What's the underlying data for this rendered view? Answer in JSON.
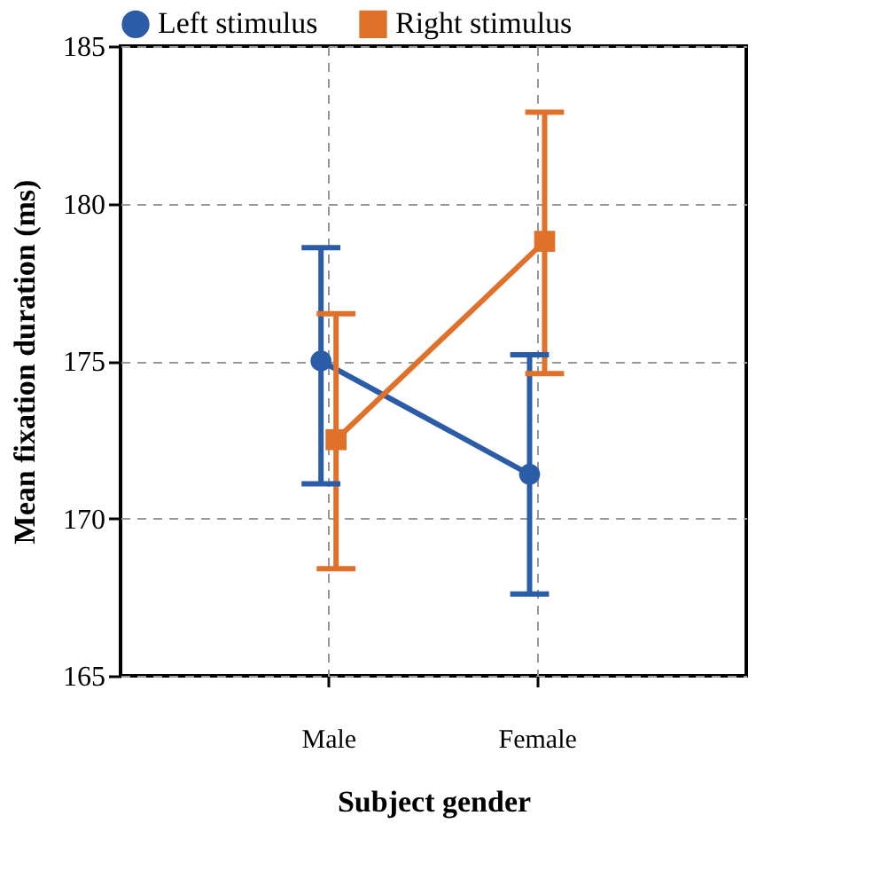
{
  "chart_data": {
    "type": "line",
    "xlabel": "Subject gender",
    "ylabel": "Mean fixation duration (ms)",
    "categories": [
      "Male",
      "Female"
    ],
    "series": [
      {
        "name": "Left stimulus",
        "color": "#2b5ca8",
        "marker": "circle",
        "values": [
          175.0,
          171.4
        ],
        "errors": [
          [
            171.1,
            178.6
          ],
          [
            167.6,
            175.2
          ]
        ]
      },
      {
        "name": "Right stimulus",
        "color": "#e0712b",
        "marker": "square",
        "values": [
          172.5,
          178.8
        ],
        "errors": [
          [
            168.4,
            176.5
          ],
          [
            174.6,
            182.9
          ]
        ]
      }
    ],
    "ylim": [
      165,
      185
    ],
    "yticks": [
      165,
      170,
      175,
      180,
      185
    ],
    "grid": true,
    "legend": "top",
    "line_style": "solid"
  }
}
